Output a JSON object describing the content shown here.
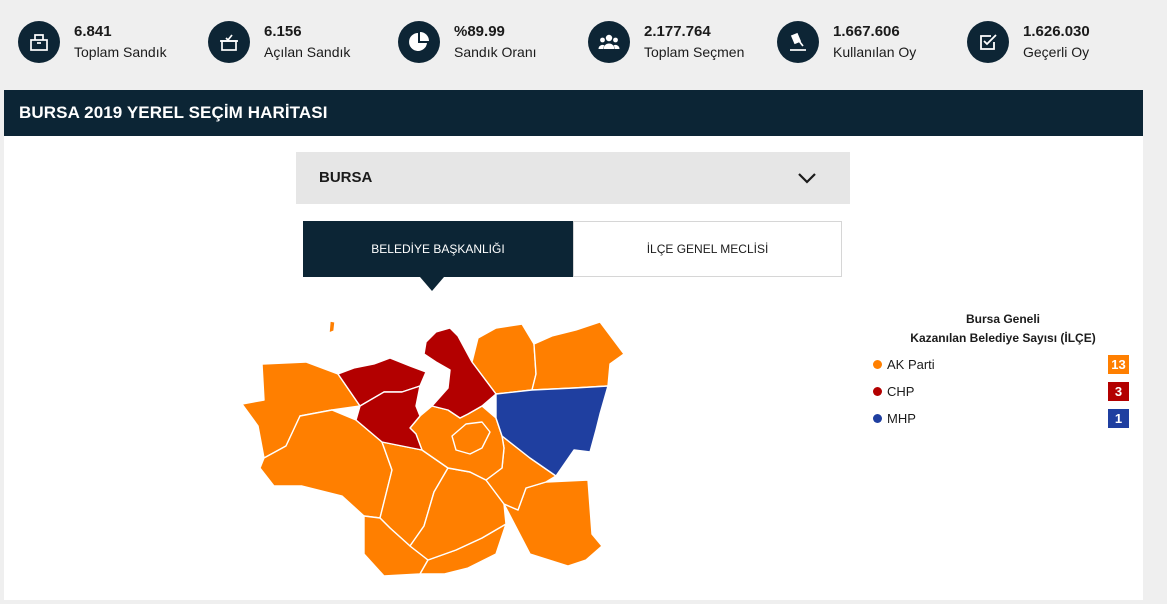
{
  "stats": [
    {
      "value": "6.841",
      "label": "Toplam Sandık",
      "icon": "ballot-box-icon"
    },
    {
      "value": "6.156",
      "label": "Açılan Sandık",
      "icon": "open-ballot-box-icon"
    },
    {
      "value": "%89.99",
      "label": "Sandık Oranı",
      "icon": "pie-chart-icon"
    },
    {
      "value": "2.177.764",
      "label": "Toplam Seçmen",
      "icon": "people-icon"
    },
    {
      "value": "1.667.606",
      "label": "Kullanılan Oy",
      "icon": "voting-hand-icon"
    },
    {
      "value": "1.626.030",
      "label": "Geçerli Oy",
      "icon": "checkbox-icon"
    }
  ],
  "header": {
    "title": "BURSA 2019 YEREL SEÇİM HARİTASI"
  },
  "dropdown": {
    "selected": "BURSA"
  },
  "tabs": [
    {
      "label": "BELEDİYE BAŞKANLIĞI",
      "active": true
    },
    {
      "label": "İLÇE GENEL MECLİSİ",
      "active": false
    }
  ],
  "legend": {
    "title_line1": "Bursa Geneli",
    "title_line2": "Kazanılan Belediye Sayısı (İLÇE)",
    "items": [
      {
        "name": "AK Parti",
        "count": "13",
        "color": "#ff7f00"
      },
      {
        "name": "CHP",
        "count": "3",
        "color": "#b30000"
      },
      {
        "name": "MHP",
        "count": "1",
        "color": "#1f3fa0"
      }
    ]
  },
  "colors": {
    "akp": "#ff7f00",
    "chp": "#b30000",
    "mhp": "#1f3fa0",
    "dark": "#0c2535"
  }
}
